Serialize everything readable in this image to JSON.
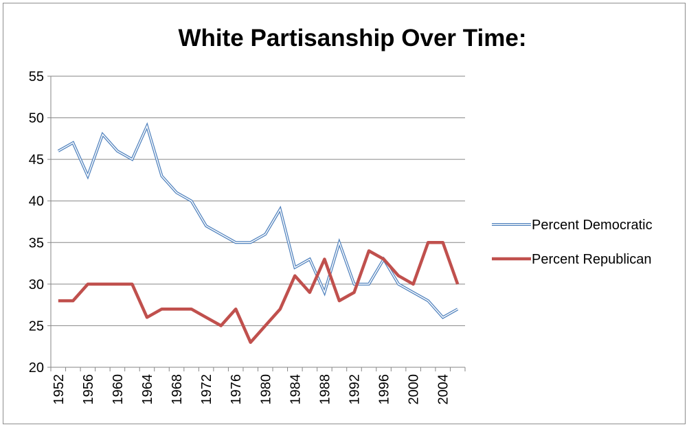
{
  "chart_data": {
    "type": "line",
    "title": "White Partisanship Over Time:",
    "xlabel": "",
    "ylabel": "",
    "ylim": [
      20,
      55
    ],
    "yticks": [
      20,
      25,
      30,
      35,
      40,
      45,
      50,
      55
    ],
    "x": [
      1952,
      1954,
      1956,
      1958,
      1960,
      1962,
      1964,
      1966,
      1968,
      1970,
      1972,
      1974,
      1976,
      1978,
      1980,
      1982,
      1984,
      1986,
      1988,
      1990,
      1992,
      1994,
      1996,
      1998,
      2000,
      2002,
      2004,
      2006
    ],
    "xtick_labels": [
      "1952",
      "1956",
      "1960",
      "1964",
      "1968",
      "1972",
      "1976",
      "1980",
      "1984",
      "1988",
      "1992",
      "1996",
      "2000",
      "2004"
    ],
    "grid": "horizontal",
    "legend_position": "right",
    "series": [
      {
        "name": "Percent Democratic",
        "color": "#4f81bd",
        "style": "double-line",
        "values": [
          46,
          47,
          43,
          48,
          46,
          45,
          49,
          43,
          41,
          40,
          37,
          36,
          35,
          35,
          36,
          39,
          32,
          33,
          29,
          35,
          30,
          30,
          33,
          30,
          29,
          28,
          26,
          27
        ]
      },
      {
        "name": "Percent Republican",
        "color": "#c0504d",
        "style": "thick-line",
        "values": [
          28,
          28,
          30,
          30,
          30,
          30,
          26,
          27,
          27,
          27,
          26,
          25,
          27,
          23,
          25,
          27,
          31,
          29,
          33,
          28,
          29,
          34,
          33,
          31,
          30,
          35,
          35,
          30
        ]
      }
    ]
  }
}
